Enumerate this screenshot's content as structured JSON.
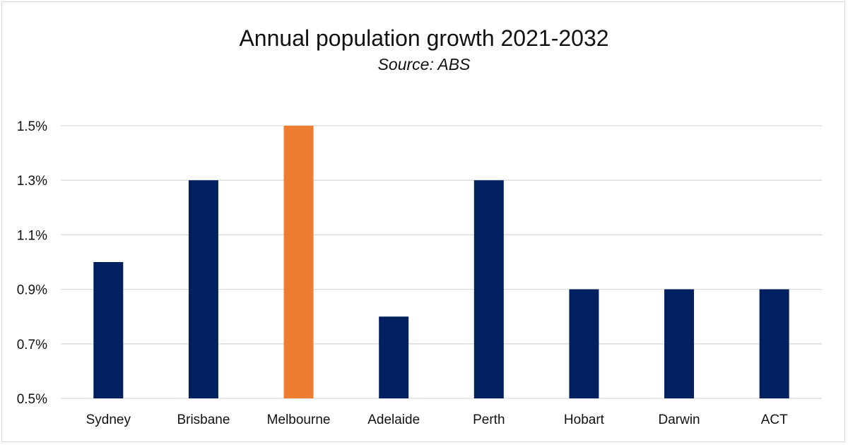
{
  "chart_data": {
    "type": "bar",
    "title": "Annual population growth 2021-2032",
    "subtitle": "Source: ABS",
    "xlabel": "",
    "ylabel": "",
    "categories": [
      "Sydney",
      "Brisbane",
      "Melbourne",
      "Adelaide",
      "Perth",
      "Hobart",
      "Darwin",
      "ACT"
    ],
    "values": [
      1.0,
      1.3,
      1.5,
      0.8,
      1.3,
      0.9,
      0.9,
      0.9
    ],
    "unit": "%",
    "ylim": [
      0.5,
      1.5
    ],
    "yticks": [
      0.5,
      0.7,
      0.9,
      1.1,
      1.3,
      1.5
    ],
    "ytick_labels": [
      "0.5%",
      "0.7%",
      "0.9%",
      "1.1%",
      "1.3%",
      "1.5%"
    ],
    "grid": true,
    "legend": "none",
    "colors": {
      "default": "#002060",
      "highlight": "#ED7D31",
      "highlight_category": "Melbourne",
      "grid": "#d9d9d9"
    }
  }
}
